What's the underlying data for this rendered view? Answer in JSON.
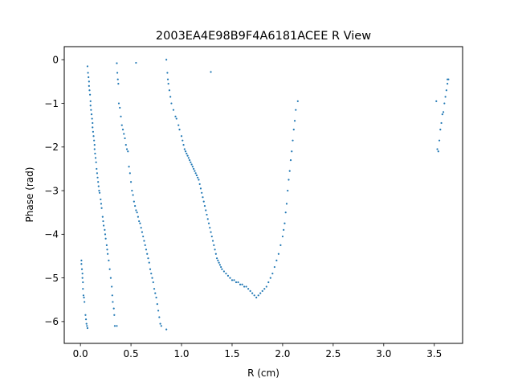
{
  "chart_data": {
    "type": "scatter",
    "title": "2003EA4E98B9F4A6181ACEE R View",
    "xlabel": "R (cm)",
    "ylabel": "Phase (rad)",
    "xlim": [
      -0.16,
      3.78
    ],
    "ylim": [
      -6.5,
      0.3
    ],
    "xticks": [
      0.0,
      0.5,
      1.0,
      1.5,
      2.0,
      2.5,
      3.0,
      3.5
    ],
    "xtick_labels": [
      "0.0",
      "0.5",
      "1.0",
      "1.5",
      "2.0",
      "2.5",
      "3.0",
      "3.5"
    ],
    "yticks": [
      0,
      -1,
      -2,
      -3,
      -4,
      -5,
      -6
    ],
    "ytick_labels": [
      "0",
      "−1",
      "−2",
      "−3",
      "−4",
      "−5",
      "−6"
    ],
    "grid": false,
    "legend": "none",
    "marker_color": "#1f77b4",
    "series": [
      {
        "points": [
          [
            0.01,
            -4.6
          ],
          [
            0.01,
            -4.68
          ],
          [
            0.015,
            -4.8
          ],
          [
            0.02,
            -4.9
          ],
          [
            0.02,
            -5.0
          ],
          [
            0.025,
            -5.1
          ],
          [
            0.025,
            -5.25
          ],
          [
            0.03,
            -5.4
          ],
          [
            0.035,
            -5.45
          ],
          [
            0.04,
            -5.55
          ],
          [
            0.05,
            -5.85
          ],
          [
            0.055,
            -5.95
          ],
          [
            0.06,
            -6.05
          ],
          [
            0.065,
            -6.1
          ],
          [
            0.07,
            -6.15
          ],
          [
            0.07,
            -0.15
          ],
          [
            0.075,
            -0.3
          ],
          [
            0.08,
            -0.4
          ],
          [
            0.085,
            -0.5
          ],
          [
            0.085,
            -0.6
          ],
          [
            0.09,
            -0.7
          ],
          [
            0.095,
            -0.8
          ],
          [
            0.1,
            -0.95
          ],
          [
            0.1,
            -1.05
          ],
          [
            0.105,
            -1.15
          ],
          [
            0.11,
            -1.25
          ],
          [
            0.115,
            -1.35
          ],
          [
            0.12,
            -1.45
          ],
          [
            0.12,
            -1.55
          ],
          [
            0.125,
            -1.65
          ],
          [
            0.13,
            -1.75
          ],
          [
            0.135,
            -1.85
          ],
          [
            0.14,
            -1.95
          ],
          [
            0.14,
            -2.05
          ],
          [
            0.145,
            -2.15
          ],
          [
            0.15,
            -2.25
          ],
          [
            0.155,
            -2.35
          ],
          [
            0.16,
            -2.5
          ],
          [
            0.165,
            -2.6
          ],
          [
            0.17,
            -2.7
          ],
          [
            0.175,
            -2.8
          ],
          [
            0.18,
            -2.9
          ],
          [
            0.185,
            -3.0
          ],
          [
            0.19,
            -3.05
          ],
          [
            0.2,
            -3.2
          ],
          [
            0.205,
            -3.3
          ],
          [
            0.21,
            -3.4
          ],
          [
            0.22,
            -3.6
          ],
          [
            0.225,
            -3.7
          ],
          [
            0.23,
            -3.8
          ],
          [
            0.24,
            -3.9
          ],
          [
            0.245,
            -4.0
          ],
          [
            0.25,
            -4.1
          ],
          [
            0.26,
            -4.25
          ],
          [
            0.265,
            -4.35
          ],
          [
            0.27,
            -4.45
          ],
          [
            0.28,
            -4.6
          ],
          [
            0.29,
            -4.8
          ],
          [
            0.3,
            -5.0
          ],
          [
            0.31,
            -5.2
          ],
          [
            0.315,
            -5.4
          ],
          [
            0.32,
            -5.55
          ],
          [
            0.33,
            -5.7
          ],
          [
            0.335,
            -5.85
          ],
          [
            0.34,
            -6.1
          ],
          [
            0.36,
            -6.1
          ],
          [
            0.36,
            -0.08
          ],
          [
            0.365,
            -0.3
          ],
          [
            0.37,
            -0.45
          ],
          [
            0.375,
            -0.55
          ],
          [
            0.38,
            -1.0
          ],
          [
            0.39,
            -1.1
          ],
          [
            0.4,
            -1.3
          ],
          [
            0.41,
            -1.5
          ],
          [
            0.42,
            -1.6
          ],
          [
            0.43,
            -1.7
          ],
          [
            0.44,
            -1.8
          ],
          [
            0.45,
            -1.95
          ],
          [
            0.46,
            -2.05
          ],
          [
            0.47,
            -2.1
          ],
          [
            0.48,
            -2.45
          ],
          [
            0.49,
            -2.6
          ],
          [
            0.5,
            -2.8
          ],
          [
            0.51,
            -3.0
          ],
          [
            0.52,
            -3.1
          ],
          [
            0.53,
            -3.25
          ],
          [
            0.54,
            -3.35
          ],
          [
            0.55,
            -3.45
          ],
          [
            0.56,
            -3.5
          ],
          [
            0.57,
            -3.6
          ],
          [
            0.58,
            -3.7
          ],
          [
            0.59,
            -3.75
          ],
          [
            0.6,
            -3.85
          ],
          [
            0.61,
            -3.95
          ],
          [
            0.62,
            -4.05
          ],
          [
            0.63,
            -4.15
          ],
          [
            0.64,
            -4.25
          ],
          [
            0.65,
            -4.35
          ],
          [
            0.66,
            -4.45
          ],
          [
            0.67,
            -4.55
          ],
          [
            0.68,
            -4.65
          ],
          [
            0.69,
            -4.8
          ],
          [
            0.7,
            -4.9
          ],
          [
            0.71,
            -5.0
          ],
          [
            0.72,
            -5.1
          ],
          [
            0.73,
            -5.25
          ],
          [
            0.74,
            -5.35
          ],
          [
            0.75,
            -5.45
          ],
          [
            0.76,
            -5.6
          ],
          [
            0.77,
            -5.75
          ],
          [
            0.78,
            -5.9
          ],
          [
            0.79,
            -6.05
          ],
          [
            0.8,
            -6.1
          ],
          [
            0.85,
            -6.18
          ],
          [
            0.55,
            -0.07
          ],
          [
            0.85,
            0.0
          ],
          [
            0.86,
            -0.3
          ],
          [
            0.865,
            -0.45
          ],
          [
            0.87,
            -0.55
          ],
          [
            0.88,
            -0.7
          ],
          [
            0.89,
            -0.85
          ],
          [
            0.9,
            -1.0
          ],
          [
            0.92,
            -1.15
          ],
          [
            0.94,
            -1.3
          ],
          [
            0.95,
            -1.35
          ],
          [
            0.97,
            -1.5
          ],
          [
            0.98,
            -1.6
          ],
          [
            1.0,
            -1.75
          ],
          [
            1.01,
            -1.85
          ],
          [
            1.02,
            -1.95
          ],
          [
            1.03,
            -2.05
          ],
          [
            1.04,
            -2.1
          ],
          [
            1.05,
            -2.15
          ],
          [
            1.06,
            -2.2
          ],
          [
            1.07,
            -2.25
          ],
          [
            1.08,
            -2.3
          ],
          [
            1.09,
            -2.35
          ],
          [
            1.1,
            -2.4
          ],
          [
            1.11,
            -2.45
          ],
          [
            1.12,
            -2.5
          ],
          [
            1.13,
            -2.55
          ],
          [
            1.14,
            -2.6
          ],
          [
            1.15,
            -2.65
          ],
          [
            1.16,
            -2.7
          ],
          [
            1.17,
            -2.75
          ],
          [
            1.18,
            -2.85
          ],
          [
            1.19,
            -2.95
          ],
          [
            1.2,
            -3.05
          ],
          [
            1.21,
            -3.15
          ],
          [
            1.22,
            -3.25
          ],
          [
            1.23,
            -3.35
          ],
          [
            1.24,
            -3.45
          ],
          [
            1.25,
            -3.55
          ],
          [
            1.26,
            -3.65
          ],
          [
            1.27,
            -3.75
          ],
          [
            1.28,
            -3.85
          ],
          [
            1.29,
            -3.95
          ],
          [
            1.3,
            -4.05
          ],
          [
            1.31,
            -4.15
          ],
          [
            1.32,
            -4.25
          ],
          [
            1.33,
            -4.35
          ],
          [
            1.34,
            -4.45
          ],
          [
            1.35,
            -4.55
          ],
          [
            1.36,
            -4.6
          ],
          [
            1.37,
            -4.65
          ],
          [
            1.38,
            -4.7
          ],
          [
            1.39,
            -4.75
          ],
          [
            1.4,
            -4.8
          ],
          [
            1.42,
            -4.85
          ],
          [
            1.44,
            -4.9
          ],
          [
            1.46,
            -4.95
          ],
          [
            1.48,
            -5.0
          ],
          [
            1.5,
            -5.05
          ],
          [
            1.52,
            -5.05
          ],
          [
            1.54,
            -5.1
          ],
          [
            1.56,
            -5.1
          ],
          [
            1.58,
            -5.15
          ],
          [
            1.6,
            -5.15
          ],
          [
            1.62,
            -5.2
          ],
          [
            1.64,
            -5.2
          ],
          [
            1.66,
            -5.25
          ],
          [
            1.68,
            -5.3
          ],
          [
            1.7,
            -5.35
          ],
          [
            1.72,
            -5.4
          ],
          [
            1.74,
            -5.45
          ],
          [
            1.76,
            -5.4
          ],
          [
            1.78,
            -5.35
          ],
          [
            1.8,
            -5.3
          ],
          [
            1.82,
            -5.25
          ],
          [
            1.84,
            -5.2
          ],
          [
            1.86,
            -5.1
          ],
          [
            1.88,
            -5.0
          ],
          [
            1.9,
            -4.9
          ],
          [
            1.92,
            -4.75
          ],
          [
            1.94,
            -4.6
          ],
          [
            1.96,
            -4.45
          ],
          [
            1.98,
            -4.25
          ],
          [
            2.0,
            -4.05
          ],
          [
            2.01,
            -3.9
          ],
          [
            2.02,
            -3.75
          ],
          [
            2.03,
            -3.5
          ],
          [
            2.04,
            -3.3
          ],
          [
            2.05,
            -3.0
          ],
          [
            2.06,
            -2.75
          ],
          [
            2.07,
            -2.55
          ],
          [
            2.08,
            -2.3
          ],
          [
            2.09,
            -2.1
          ],
          [
            2.1,
            -1.85
          ],
          [
            2.11,
            -1.6
          ],
          [
            2.12,
            -1.4
          ],
          [
            2.13,
            -1.15
          ],
          [
            2.15,
            -0.95
          ],
          [
            1.29,
            -0.28
          ],
          [
            3.52,
            -0.95
          ],
          [
            3.53,
            -2.05
          ],
          [
            3.54,
            -2.1
          ],
          [
            3.55,
            -1.85
          ],
          [
            3.56,
            -1.6
          ],
          [
            3.57,
            -1.45
          ],
          [
            3.58,
            -1.25
          ],
          [
            3.59,
            -1.2
          ],
          [
            3.6,
            -1.0
          ],
          [
            3.61,
            -0.85
          ],
          [
            3.62,
            -0.7
          ],
          [
            3.63,
            -0.55
          ],
          [
            3.63,
            -0.45
          ],
          [
            3.64,
            -0.45
          ]
        ]
      }
    ]
  }
}
